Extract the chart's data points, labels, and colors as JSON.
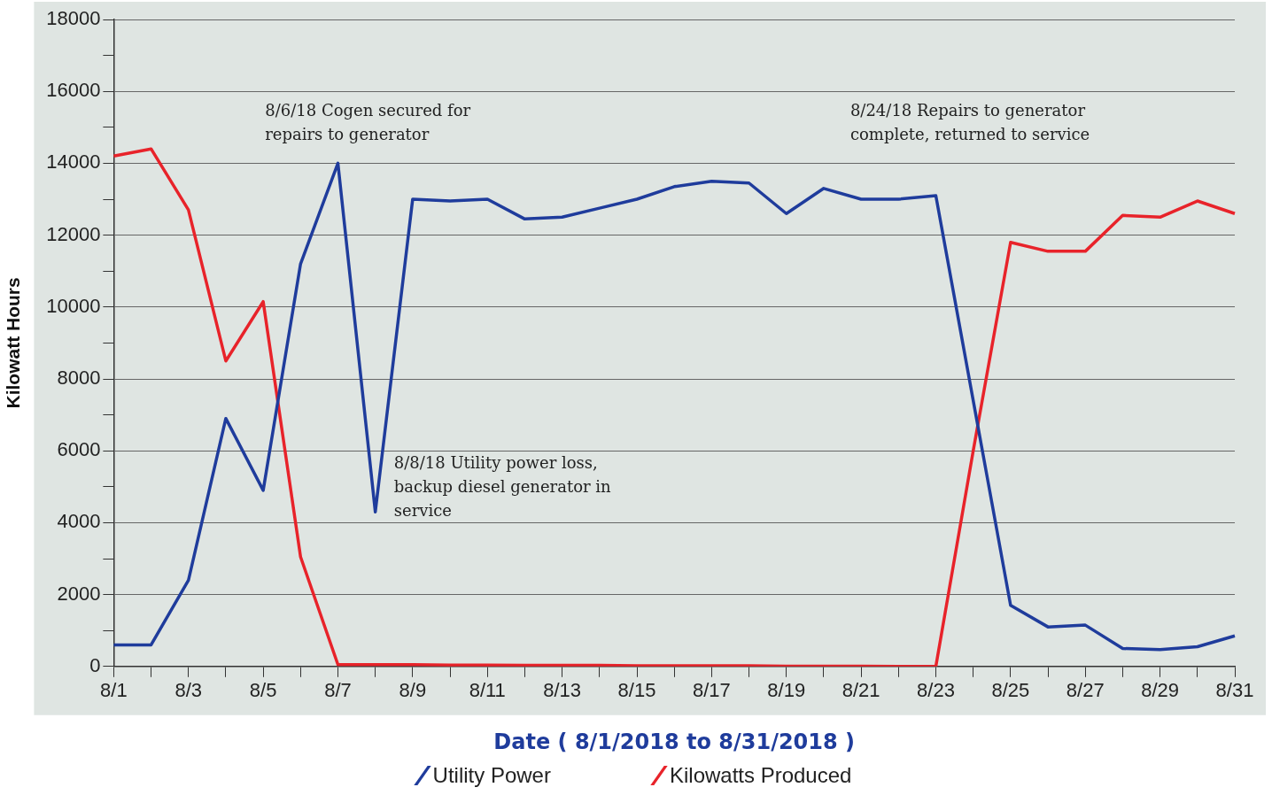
{
  "chart_data": {
    "type": "line",
    "xlabel": "Date ( 8/1/2018 to 8/31/2018 )",
    "ylabel": "Kilowatt Hours",
    "categories": [
      "8/1",
      null,
      "8/3",
      null,
      "8/5",
      null,
      "8/7",
      null,
      "8/9",
      null,
      "8/11",
      null,
      "8/13",
      null,
      "8/15",
      null,
      "8/17",
      null,
      "8/19",
      null,
      "8/21",
      null,
      "8/23",
      null,
      "8/25",
      null,
      "8/27",
      null,
      "8/29",
      null,
      "8/31"
    ],
    "series": [
      {
        "name": "Utility Power",
        "color": "#1f3c9c",
        "values": [
          600,
          600,
          2400,
          6900,
          4900,
          11200,
          14000,
          4300,
          13000,
          12950,
          13000,
          12450,
          12500,
          12750,
          13000,
          13350,
          13500,
          13450,
          12600,
          13300,
          13000,
          13000,
          13100,
          7400,
          1700,
          1100,
          1150,
          500,
          470,
          550,
          850
        ]
      },
      {
        "name": "Kilowatts Produced",
        "color": "#e8232a",
        "values": [
          14200,
          14400,
          12700,
          8500,
          10150,
          3050,
          50,
          50,
          50,
          40,
          40,
          30,
          30,
          30,
          20,
          20,
          20,
          20,
          10,
          10,
          10,
          0,
          0,
          6000,
          11800,
          11550,
          11550,
          12550,
          12500,
          12950,
          12600
        ]
      }
    ],
    "ylim": [
      0,
      18000
    ],
    "yticks": [
      0,
      {
        "value": 1000,
        "label": null
      },
      2000,
      {
        "value": 3000,
        "label": null
      },
      4000,
      {
        "value": 5000,
        "label": null
      },
      6000,
      {
        "value": 7000,
        "label": null
      },
      8000,
      {
        "value": 9000,
        "label": null
      },
      10000,
      {
        "value": 11000,
        "label": null
      },
      12000,
      {
        "value": 13000,
        "label": null
      },
      14000,
      {
        "value": 15000,
        "label": null
      },
      16000,
      {
        "value": 17000,
        "label": null
      },
      18000
    ],
    "grid": "y",
    "legend": "bottom",
    "marker": "none",
    "line_style": "solid",
    "annotations": [
      "8/6/18 Cogen secured for\nrepairs to generator",
      "8/8/18 Utility power loss,\nbackup diesel generator in\nservice",
      "8/24/18 Repairs to generator\ncomplete, returned to service"
    ]
  }
}
